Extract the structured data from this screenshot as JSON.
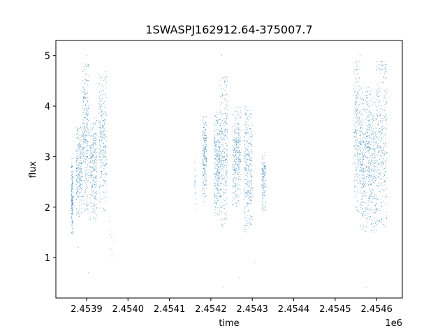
{
  "chart_data": {
    "type": "scatter",
    "title": "1SWASPJ162912.64-375007.7",
    "xlabel": "time",
    "ylabel": "flux",
    "x_offset_label": "1e6",
    "xlim": [
      2453826,
      2454662
    ],
    "ylim": [
      0.2,
      5.3
    ],
    "x_ticks": [
      2453900,
      2454000,
      2454100,
      2454200,
      2454300,
      2454400,
      2454500,
      2454600
    ],
    "x_tick_labels": [
      "2.4539",
      "2.4540",
      "2.4541",
      "2.4542",
      "2.4543",
      "2.4544",
      "2.4545",
      "2.4546"
    ],
    "y_ticks": [
      1,
      2,
      3,
      4,
      5
    ],
    "y_tick_labels": [
      "1",
      "2",
      "3",
      "4",
      "5"
    ],
    "grid": false,
    "marker_color": "#1f77b4",
    "series": [
      {
        "segments": [
          {
            "x_range": [
              2453863,
              2453868
            ],
            "y_range": [
              1.4,
              3.0
            ],
            "count": 180
          },
          {
            "x_range": [
              2453875,
              2453889
            ],
            "y_range": [
              1.8,
              3.6
            ],
            "count": 260
          },
          {
            "x_range": [
              2453890,
              2453905
            ],
            "y_range": [
              1.9,
              4.9
            ],
            "count": 320
          },
          {
            "x_range": [
              2453908,
              2453925
            ],
            "y_range": [
              1.7,
              3.8
            ],
            "count": 280
          },
          {
            "x_range": [
              2453930,
              2453948
            ],
            "y_range": [
              1.9,
              4.7
            ],
            "count": 300
          },
          {
            "x_range": [
              2453955,
              2453962
            ],
            "y_range": [
              0.9,
              1.8
            ],
            "count": 8
          },
          {
            "x_range": [
              2454160,
              2454164
            ],
            "y_range": [
              1.9,
              3.2
            ],
            "count": 20
          },
          {
            "x_range": [
              2454180,
              2454190
            ],
            "y_range": [
              2.1,
              3.8
            ],
            "count": 220
          },
          {
            "x_range": [
              2454208,
              2454222
            ],
            "y_range": [
              1.8,
              3.9
            ],
            "count": 300
          },
          {
            "x_range": [
              2454222,
              2454240
            ],
            "y_range": [
              1.6,
              4.6
            ],
            "count": 320
          },
          {
            "x_range": [
              2454252,
              2454272
            ],
            "y_range": [
              2.0,
              4.0
            ],
            "count": 320
          },
          {
            "x_range": [
              2454280,
              2454300
            ],
            "y_range": [
              1.5,
              4.0
            ],
            "count": 340
          },
          {
            "x_range": [
              2454323,
              2454333
            ],
            "y_range": [
              1.9,
              3.1
            ],
            "count": 150
          },
          {
            "x_range": [
              2454545,
              2454560
            ],
            "y_range": [
              1.9,
              4.9
            ],
            "count": 260
          },
          {
            "x_range": [
              2454560,
              2454600
            ],
            "y_range": [
              1.5,
              4.4
            ],
            "count": 700
          },
          {
            "x_range": [
              2454600,
              2454625
            ],
            "y_range": [
              1.6,
              4.9
            ],
            "count": 340
          }
        ],
        "outliers": [
          {
            "x": 2453905,
            "y": 0.7
          },
          {
            "x": 2453880,
            "y": 1.2
          },
          {
            "x": 2454230,
            "y": 0.4
          },
          {
            "x": 2454268,
            "y": 0.6
          },
          {
            "x": 2454226,
            "y": 5.0
          },
          {
            "x": 2454305,
            "y": 0.9
          },
          {
            "x": 2454575,
            "y": 0.4
          },
          {
            "x": 2453900,
            "y": 5.0
          },
          {
            "x": 2454560,
            "y": 5.0
          }
        ]
      }
    ]
  }
}
